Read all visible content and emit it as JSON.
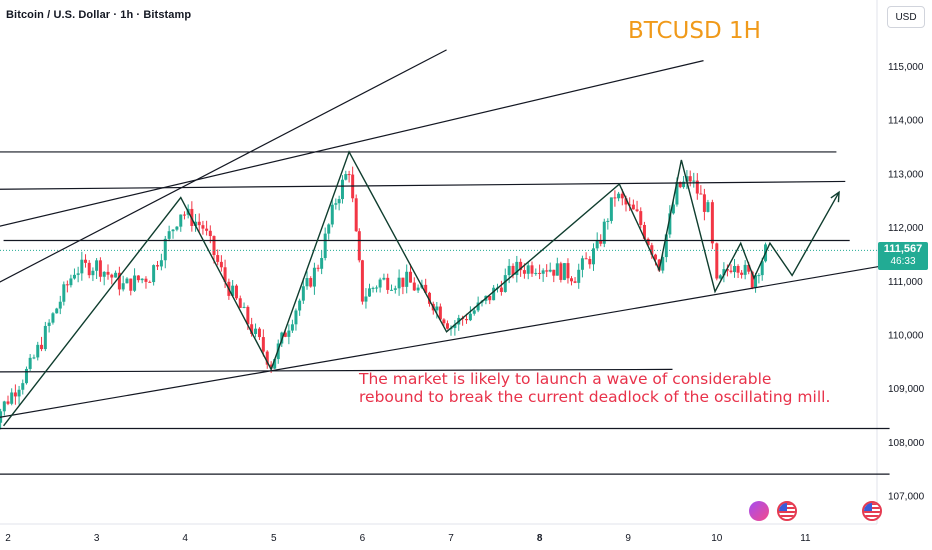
{
  "header": {
    "symbol_line": "Bitcoin / U.S. Dollar · 1h · Bitstamp",
    "currency": "USD"
  },
  "chart_data": {
    "type": "candlestick",
    "title": "BTCUSD 1H",
    "x_ticks": [
      "2",
      "3",
      "4",
      "5",
      "6",
      "7",
      "8",
      "9",
      "10",
      "11"
    ],
    "x_tick_day_positions": [
      2,
      3,
      4,
      5,
      6,
      7,
      8,
      9,
      10,
      11
    ],
    "y_ticks": [
      107000,
      108000,
      109000,
      110000,
      111000,
      112000,
      113000,
      114000,
      115000
    ],
    "y_tick_labels": [
      "107,000",
      "108,000",
      "109,000",
      "110,000",
      "111,000",
      "112,000",
      "113,000",
      "114,000",
      "115,000"
    ],
    "ylim": [
      106700,
      116200
    ],
    "last_price": "111,567",
    "countdown": "46:33",
    "colors": {
      "up": "#22ab94",
      "down": "#f23645",
      "lines": "#131722",
      "title": "#f09a1a",
      "annotation": "#e8324a",
      "path": "#0f3d2e"
    },
    "annotation": [
      "The market is likely to launch a wave of considerable",
      "rebound to break the current deadlock of the oscillating mill."
    ],
    "price_path": [
      {
        "day": 1.95,
        "price": 108300
      },
      {
        "day": 3.95,
        "price": 112550
      },
      {
        "day": 4.97,
        "price": 109350
      },
      {
        "day": 5.85,
        "price": 113400
      },
      {
        "day": 6.95,
        "price": 110050
      },
      {
        "day": 8.9,
        "price": 112800
      },
      {
        "day": 9.35,
        "price": 111200
      },
      {
        "day": 9.6,
        "price": 113250
      },
      {
        "day": 9.98,
        "price": 110800
      },
      {
        "day": 10.27,
        "price": 111700
      },
      {
        "day": 10.42,
        "price": 111050
      },
      {
        "day": 10.6,
        "price": 111700
      },
      {
        "day": 10.85,
        "price": 111100
      },
      {
        "day": 11.38,
        "price": 112650
      }
    ],
    "anchor_points": [
      {
        "day": 1.75,
        "price": 108200
      },
      {
        "day": 2.25,
        "price": 109400
      },
      {
        "day": 2.55,
        "price": 110500
      },
      {
        "day": 2.75,
        "price": 111200
      },
      {
        "day": 3.0,
        "price": 111300
      },
      {
        "day": 3.3,
        "price": 110900
      },
      {
        "day": 3.6,
        "price": 111100
      },
      {
        "day": 3.95,
        "price": 112300
      },
      {
        "day": 4.2,
        "price": 112000
      },
      {
        "day": 4.45,
        "price": 111000
      },
      {
        "day": 4.75,
        "price": 110100
      },
      {
        "day": 4.97,
        "price": 109450
      },
      {
        "day": 5.25,
        "price": 110500
      },
      {
        "day": 5.5,
        "price": 111300
      },
      {
        "day": 5.7,
        "price": 112500
      },
      {
        "day": 5.85,
        "price": 113100
      },
      {
        "day": 5.93,
        "price": 111800
      },
      {
        "day": 6.0,
        "price": 110700
      },
      {
        "day": 6.2,
        "price": 111000
      },
      {
        "day": 6.5,
        "price": 111000
      },
      {
        "day": 6.8,
        "price": 110600
      },
      {
        "day": 7.0,
        "price": 110150
      },
      {
        "day": 7.35,
        "price": 110550
      },
      {
        "day": 7.7,
        "price": 111200
      },
      {
        "day": 8.0,
        "price": 111300
      },
      {
        "day": 8.4,
        "price": 111100
      },
      {
        "day": 8.65,
        "price": 111600
      },
      {
        "day": 8.85,
        "price": 112600
      },
      {
        "day": 9.1,
        "price": 112200
      },
      {
        "day": 9.35,
        "price": 111300
      },
      {
        "day": 9.55,
        "price": 112700
      },
      {
        "day": 9.7,
        "price": 112900
      },
      {
        "day": 9.9,
        "price": 112300
      },
      {
        "day": 10.0,
        "price": 110900
      },
      {
        "day": 10.2,
        "price": 111400
      },
      {
        "day": 10.4,
        "price": 111000
      },
      {
        "day": 10.55,
        "price": 111550
      }
    ],
    "trend_lines": [
      {
        "d1": 1.4,
        "p1": 113400,
        "d2": 11.35,
        "p2": 113400
      },
      {
        "d1": 1.6,
        "p1": 112700,
        "d2": 11.45,
        "p2": 112850
      },
      {
        "d1": 1.95,
        "p1": 111750,
        "d2": 11.5,
        "p2": 111750
      },
      {
        "d1": 1.35,
        "p1": 109300,
        "d2": 9.5,
        "p2": 109350
      },
      {
        "d1": 1.35,
        "p1": 108250,
        "d2": 11.95,
        "p2": 108250
      },
      {
        "d1": 1.35,
        "p1": 107400,
        "d2": 11.95,
        "p2": 107400
      },
      {
        "d1": 1.35,
        "p1": 108300,
        "d2": 11.95,
        "p2": 111300
      },
      {
        "d1": 1.35,
        "p1": 110500,
        "d2": 6.95,
        "p2": 115300
      },
      {
        "d1": 1.35,
        "p1": 111800,
        "d2": 9.85,
        "p2": 115100
      }
    ]
  }
}
